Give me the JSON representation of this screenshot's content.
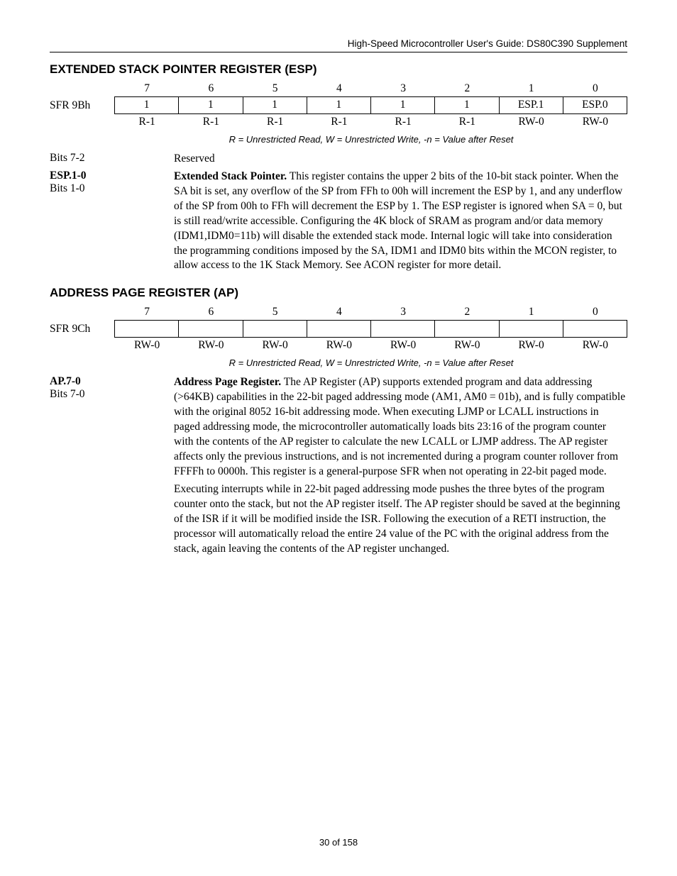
{
  "header": "High-Speed Microcontroller User's Guide: DS80C390 Supplement",
  "footer": "30 of 158",
  "legend_text": "R = Unrestricted Read, W = Unrestricted Write, -n = Value after Reset",
  "esp": {
    "title": "EXTENDED STACK POINTER REGISTER (ESP)",
    "sfr": "SFR 9Bh",
    "bitnums": [
      "7",
      "6",
      "5",
      "4",
      "3",
      "2",
      "1",
      "0"
    ],
    "vals": [
      "1",
      "1",
      "1",
      "1",
      "1",
      "1",
      "ESP.1",
      "ESP.0"
    ],
    "access": [
      "R-1",
      "R-1",
      "R-1",
      "R-1",
      "R-1",
      "R-1",
      "RW-0",
      "RW-0"
    ],
    "rows": [
      {
        "label1": "Bits 7-2",
        "label1_bold": false,
        "label2": "",
        "text_lead": "",
        "text": "Reserved"
      },
      {
        "label1": "ESP.1-0",
        "label1_bold": true,
        "label2": "Bits 1-0",
        "text_lead": "Extended Stack Pointer.",
        "text": " This register contains the upper 2 bits of the 10-bit stack pointer. When the SA bit is set, any overflow of the SP from FFh to 00h will increment the ESP by 1, and any underflow of the SP from 00h to FFh will decrement the ESP by 1. The ESP register is ignored when SA = 0, but is still read/write accessible. Configuring the 4K block of SRAM as program and/or data memory (IDM1,IDM0=11b) will disable the extended stack mode. Internal logic will take into consideration the programming conditions imposed by the SA, IDM1 and IDM0 bits within the MCON register, to allow access to the 1K Stack Memory. See ACON register for more detail."
      }
    ]
  },
  "ap": {
    "title": "ADDRESS PAGE REGISTER (AP)",
    "sfr": "SFR 9Ch",
    "bitnums": [
      "7",
      "6",
      "5",
      "4",
      "3",
      "2",
      "1",
      "0"
    ],
    "vals": [
      "",
      "",
      "",
      "",
      "",
      "",
      "",
      ""
    ],
    "access": [
      "RW-0",
      "RW-0",
      "RW-0",
      "RW-0",
      "RW-0",
      "RW-0",
      "RW-0",
      "RW-0"
    ],
    "rows": [
      {
        "label1": "AP.7-0",
        "label1_bold": true,
        "label2": "Bits 7-0",
        "text_lead": "Address Page Register.",
        "text": " The AP Register (AP) supports extended program and data addressing (>64KB) capabilities in the 22-bit paged addressing mode (AM1, AM0 = 01b), and is fully compatible with the original 8052 16-bit addressing mode. When executing LJMP or LCALL instructions in paged addressing mode, the microcontroller automatically loads bits 23:16 of the program counter with the contents of the AP register to calculate the new LCALL or LJMP address. The AP register affects only the previous instructions, and is not incremented during a program counter rollover from FFFFh to 0000h. This register is a general-purpose SFR when not operating in 22-bit paged mode."
      },
      {
        "label1": "",
        "label1_bold": false,
        "label2": "",
        "text_lead": "",
        "text": "Executing interrupts while in 22-bit paged addressing mode pushes the three bytes of the program counter onto the stack, but not the AP register itself. The AP register should be saved at the beginning of the ISR if it will be modified inside the ISR. Following the execution of a RETI instruction, the processor will automatically reload the entire 24 value of the PC with the original address from the stack, again leaving the contents of the AP register unchanged."
      }
    ]
  }
}
